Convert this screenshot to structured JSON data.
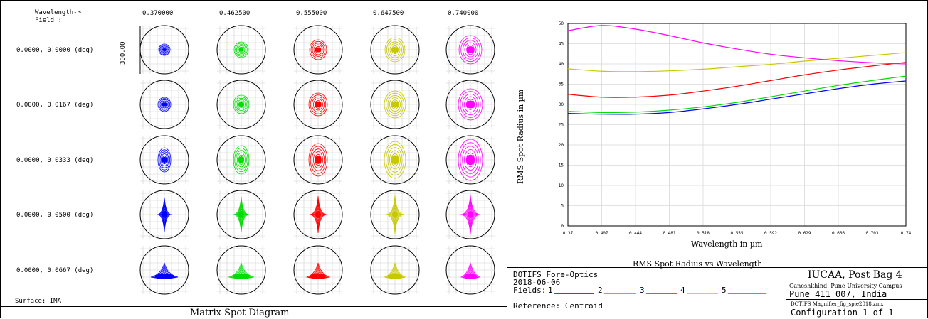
{
  "spot": {
    "header_wavelength": "Wavelength->",
    "header_field": "Field      :",
    "wavelengths": [
      "0.370000",
      "0.462500",
      "0.555000",
      "0.647500",
      "0.740000"
    ],
    "fields": [
      "0.0000, 0.0000 (deg)",
      "0.0000, 0.0167 (deg)",
      "0.0000, 0.0333 (deg)",
      "0.0000, 0.0500 (deg)",
      "0.0000, 0.0667 (deg)"
    ],
    "scale_label": "300.00",
    "surface": "Surface: IMA",
    "title": "Matrix Spot Diagram",
    "colors": [
      "#0000ff",
      "#00dd00",
      "#ff0000",
      "#c8c800",
      "#ff00ff"
    ]
  },
  "chart_data": {
    "type": "line",
    "title": "RMS Spot Radius vs Wavelength",
    "xlabel": "Wavelength in µm",
    "ylabel": "RMS Spot Radius in µm",
    "xlim": [
      0.37,
      0.74
    ],
    "ylim": [
      0,
      50
    ],
    "xticks": [
      "0.37",
      "0.407",
      "0.444",
      "0.481",
      "0.518",
      "0.555",
      "0.592",
      "0.629",
      "0.666",
      "0.703",
      "0.74"
    ],
    "yticks": [
      "0",
      "5",
      "10",
      "15",
      "20",
      "25",
      "30",
      "35",
      "40",
      "45",
      "50"
    ],
    "grid": true,
    "x": [
      0.37,
      0.407,
      0.444,
      0.481,
      0.518,
      0.555,
      0.592,
      0.629,
      0.666,
      0.703,
      0.74
    ],
    "series": [
      {
        "name": "1",
        "color": "#0000ff",
        "values": [
          27.8,
          27.6,
          27.6,
          28.0,
          28.9,
          30.0,
          31.3,
          32.6,
          33.9,
          35.0,
          35.8
        ]
      },
      {
        "name": "2",
        "color": "#00dd00",
        "values": [
          28.3,
          28.0,
          28.1,
          28.6,
          29.4,
          30.5,
          31.9,
          33.3,
          34.7,
          35.9,
          37.0
        ]
      },
      {
        "name": "3",
        "color": "#ff0000",
        "values": [
          32.5,
          31.8,
          31.8,
          32.3,
          33.3,
          34.5,
          35.9,
          37.3,
          38.5,
          39.5,
          40.4
        ]
      },
      {
        "name": "4",
        "color": "#c8c800",
        "values": [
          38.8,
          38.2,
          38.1,
          38.3,
          38.7,
          39.3,
          39.9,
          40.7,
          41.4,
          42.1,
          42.8
        ]
      },
      {
        "name": "5",
        "color": "#ff00ff",
        "values": [
          48.2,
          49.5,
          48.6,
          47.0,
          45.2,
          43.7,
          42.4,
          41.5,
          40.8,
          40.3,
          40.0
        ]
      }
    ]
  },
  "info": {
    "design": "DOTIFS Fore-Optics",
    "date": "2018-06-06",
    "fields_label": "Fields:",
    "field_numbers": [
      "1",
      "2",
      "3",
      "4",
      "5"
    ],
    "reference": "Reference: Centroid",
    "org": "IUCAA, Post Bag 4",
    "addr1": "Ganeshkhind, Pune University Campus",
    "addr2": "Pune 411 007, India",
    "file": "DOTIFS Magnifier_fig_spie2018.zmx",
    "config": "Configuration 1 of 1"
  }
}
